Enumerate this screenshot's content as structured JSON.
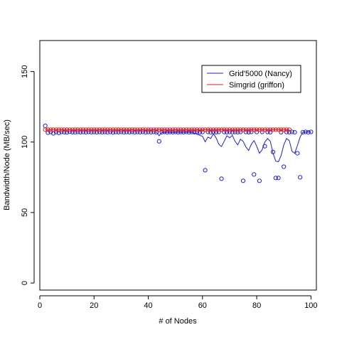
{
  "chart_data": {
    "type": "scatter",
    "xlabel": "# of Nodes",
    "ylabel": "Bandwidth/Node (MB/sec)",
    "xlim": [
      0,
      102
    ],
    "ylim": [
      -5,
      172
    ],
    "xticks": [
      0,
      20,
      40,
      60,
      80,
      100
    ],
    "yticks": [
      0,
      50,
      100,
      150
    ],
    "legend_position": "top-right",
    "legend": [
      {
        "name": "Grid'5000 (Nancy)",
        "color": "#1f1fd9"
      },
      {
        "name": "Simgrid (griffon)",
        "color": "#e02020"
      }
    ],
    "series": [
      {
        "name": "Grid'5000 (Nancy)",
        "marker": "circle",
        "color": "#1f1fd9",
        "points": [
          [
            2,
            111.5
          ],
          [
            3,
            106.7
          ],
          [
            4,
            107.2
          ],
          [
            5,
            106.2
          ],
          [
            6,
            107.1
          ],
          [
            7,
            106.5
          ],
          [
            8,
            107.2
          ],
          [
            9,
            107.0
          ],
          [
            10,
            106.8
          ],
          [
            11,
            107.3
          ],
          [
            12,
            107.0
          ],
          [
            13,
            106.9
          ],
          [
            14,
            107.2
          ],
          [
            15,
            107.0
          ],
          [
            16,
            107.1
          ],
          [
            17,
            106.9
          ],
          [
            18,
            107.2
          ],
          [
            19,
            107.0
          ],
          [
            20,
            107.1
          ],
          [
            21,
            106.9
          ],
          [
            22,
            107.2
          ],
          [
            23,
            107.0
          ],
          [
            24,
            107.1
          ],
          [
            25,
            106.9
          ],
          [
            26,
            107.2
          ],
          [
            27,
            106.8
          ],
          [
            28,
            107.1
          ],
          [
            29,
            107.0
          ],
          [
            30,
            107.2
          ],
          [
            31,
            106.9
          ],
          [
            32,
            107.1
          ],
          [
            33,
            107.0
          ],
          [
            34,
            107.2
          ],
          [
            35,
            106.9
          ],
          [
            36,
            107.1
          ],
          [
            37,
            107.0
          ],
          [
            38,
            107.2
          ],
          [
            39,
            106.9
          ],
          [
            40,
            107.1
          ],
          [
            41,
            107.0
          ],
          [
            42,
            107.2
          ],
          [
            43,
            106.9
          ],
          [
            44,
            100.5
          ],
          [
            45,
            107.0
          ],
          [
            46,
            107.2
          ],
          [
            47,
            106.9
          ],
          [
            48,
            107.1
          ],
          [
            49,
            107.0
          ],
          [
            50,
            107.2
          ],
          [
            51,
            106.9
          ],
          [
            52,
            107.1
          ],
          [
            53,
            107.0
          ],
          [
            54,
            107.2
          ],
          [
            55,
            106.9
          ],
          [
            56,
            107.1
          ],
          [
            57,
            107.0
          ],
          [
            58,
            107.2
          ],
          [
            59,
            106.9
          ],
          [
            60,
            107.1
          ],
          [
            61,
            80.0
          ],
          [
            62,
            107.2
          ],
          [
            63,
            106.9
          ],
          [
            64,
            107.1
          ],
          [
            65,
            107.0
          ],
          [
            66,
            107.2
          ],
          [
            67,
            74.0
          ],
          [
            68,
            107.1
          ],
          [
            69,
            107.0
          ],
          [
            70,
            107.2
          ],
          [
            71,
            106.9
          ],
          [
            72,
            107.1
          ],
          [
            73,
            107.0
          ],
          [
            74,
            107.2
          ],
          [
            75,
            72.5
          ],
          [
            76,
            107.1
          ],
          [
            77,
            107.0
          ],
          [
            78,
            107.2
          ],
          [
            79,
            77.0
          ],
          [
            80,
            107.1
          ],
          [
            81,
            72.5
          ],
          [
            82,
            107.2
          ],
          [
            83,
            97.0
          ],
          [
            84,
            107.1
          ],
          [
            85,
            107.0
          ],
          [
            86,
            93.0
          ],
          [
            87,
            74.5
          ],
          [
            88,
            74.5
          ],
          [
            89,
            107.0
          ],
          [
            90,
            82.5
          ],
          [
            91,
            107.1
          ],
          [
            92,
            107.0
          ],
          [
            93,
            107.2
          ],
          [
            94,
            106.9
          ],
          [
            95,
            92.0
          ],
          [
            96,
            75.0
          ],
          [
            97,
            107.0
          ],
          [
            98,
            107.2
          ],
          [
            99,
            106.9
          ],
          [
            100,
            107.2
          ]
        ]
      },
      {
        "name": "Grid'5000 (Nancy)",
        "marker": "line",
        "color": "#1f1fd9",
        "points": [
          [
            43,
            107.0
          ],
          [
            44,
            104.5
          ],
          [
            45,
            106.8
          ],
          [
            56,
            107.0
          ],
          [
            60,
            104.0
          ],
          [
            61,
            100.2
          ],
          [
            62,
            103.5
          ],
          [
            63,
            102.5
          ],
          [
            64,
            105.8
          ],
          [
            65,
            103.0
          ],
          [
            66,
            98.5
          ],
          [
            67,
            96.8
          ],
          [
            68,
            100.5
          ],
          [
            69,
            104.5
          ],
          [
            70,
            103.0
          ],
          [
            71,
            104.8
          ],
          [
            72,
            100.5
          ],
          [
            73,
            98.0
          ],
          [
            74,
            102.0
          ],
          [
            75,
            100.5
          ],
          [
            76,
            96.5
          ],
          [
            77,
            94.0
          ],
          [
            78,
            98.5
          ],
          [
            79,
            101.0
          ],
          [
            80,
            97.0
          ],
          [
            81,
            92.0
          ],
          [
            82,
            94.5
          ],
          [
            83,
            100.0
          ],
          [
            84,
            102.5
          ],
          [
            85,
            100.5
          ],
          [
            86,
            92.0
          ],
          [
            87,
            86.5
          ],
          [
            88,
            86.0
          ],
          [
            89,
            90.5
          ],
          [
            90,
            98.0
          ],
          [
            91,
            102.5
          ],
          [
            92,
            101.0
          ],
          [
            93,
            93.5
          ],
          [
            94,
            92.0
          ],
          [
            95,
            97.5
          ],
          [
            96,
            103.5
          ],
          [
            97,
            107.0
          ],
          [
            100,
            107.2
          ]
        ]
      },
      {
        "name": "Simgrid (griffon)",
        "marker": "circle",
        "color": "#e02020",
        "x_range": [
          2,
          92
        ],
        "value": 108.8
      },
      {
        "name": "Simgrid (griffon)",
        "marker": "line",
        "color": "#e02020",
        "x_range": [
          2,
          92
        ],
        "value": 108.8
      }
    ]
  }
}
